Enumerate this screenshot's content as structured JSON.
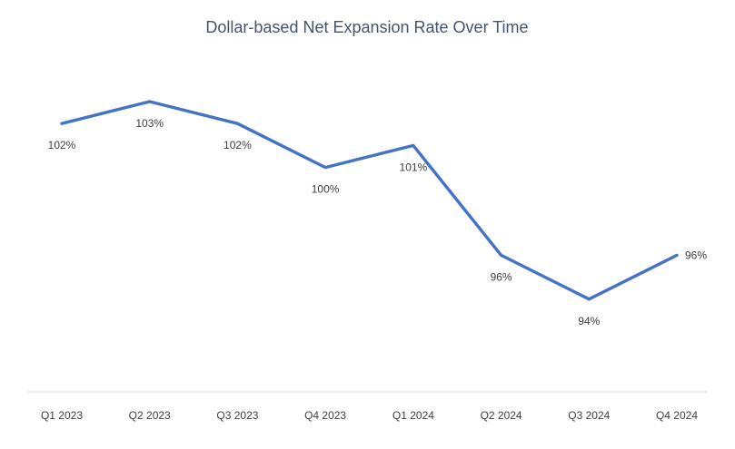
{
  "chart_data": {
    "type": "line",
    "title": "Dollar-based Net Expansion Rate Over Time",
    "categories": [
      "Q1 2023",
      "Q2 2023",
      "Q3 2023",
      "Q4 2023",
      "Q1 2024",
      "Q2 2024",
      "Q3 2024",
      "Q4 2024"
    ],
    "values": [
      102,
      103,
      102,
      100,
      101,
      96,
      94,
      96
    ],
    "data_labels": [
      "102%",
      "103%",
      "102%",
      "100%",
      "101%",
      "96%",
      "94%",
      "96%"
    ],
    "unit": "%",
    "xlabel": "",
    "ylabel": "",
    "ylim": [
      92,
      104
    ],
    "grid": false,
    "legend_position": "none",
    "series_name": "Dollar-based Net Expansion Rate",
    "line_color": "#4472C4",
    "title_color": "#44546A",
    "label_color": "#3f3f3f",
    "axis_line_color": "#D9D9D9"
  }
}
